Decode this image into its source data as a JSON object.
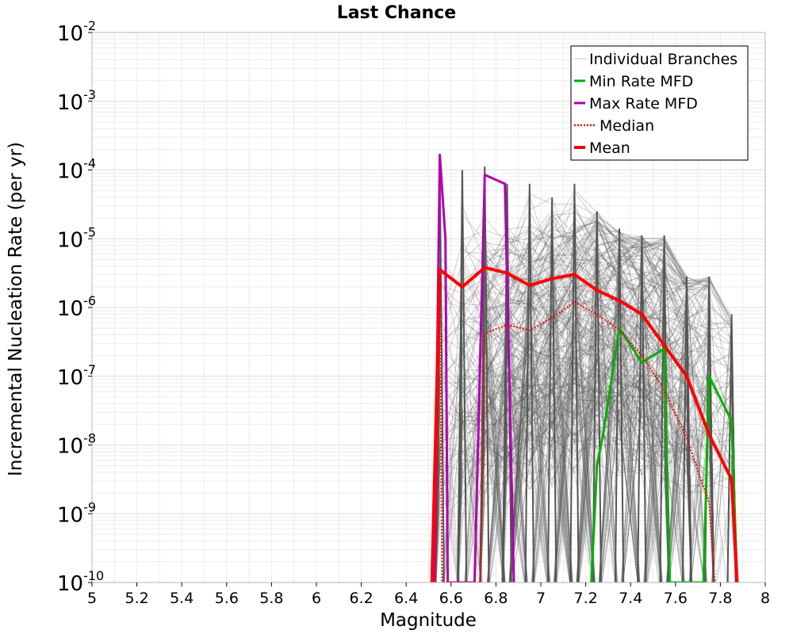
{
  "chart_data": {
    "type": "line",
    "title": "Last Chance",
    "xlabel": "Magnitude",
    "ylabel": "Incremental Nucleation Rate (per yr)",
    "xlim": [
      5,
      8
    ],
    "ylim_log10": [
      -10,
      -2
    ],
    "y_scale": "log",
    "grid": true,
    "legend_position": "top-right",
    "x_ticks": [
      5,
      5.2,
      5.4,
      5.6,
      5.8,
      6,
      6.2,
      6.4,
      6.6,
      6.8,
      7,
      7.2,
      7.4,
      7.6,
      7.8,
      8
    ],
    "x_tick_labels": [
      "5",
      "5.2",
      "5.4",
      "5.6",
      "5.8",
      "6",
      "6.2",
      "6.4",
      "6.6",
      "6.8",
      "7",
      "7.2",
      "7.4",
      "7.6",
      "7.8",
      "8"
    ],
    "y_ticks": [
      {
        "base": "10",
        "exp": "-10",
        "log": -10
      },
      {
        "base": "10",
        "exp": "-9",
        "log": -9
      },
      {
        "base": "10",
        "exp": "-8",
        "log": -8
      },
      {
        "base": "10",
        "exp": "-7",
        "log": -7
      },
      {
        "base": "10",
        "exp": "-6",
        "log": -6
      },
      {
        "base": "10",
        "exp": "-5",
        "log": -5
      },
      {
        "base": "10",
        "exp": "-4",
        "log": -4
      },
      {
        "base": "10",
        "exp": "-3",
        "log": -3
      },
      {
        "base": "10",
        "exp": "-2",
        "log": -2
      }
    ],
    "legend": [
      {
        "label": "Individual Branches",
        "color": "#c8c8c8",
        "style": "thin"
      },
      {
        "label": "Min Rate MFD",
        "color": "#00b000",
        "style": "solid"
      },
      {
        "label": "Max Rate MFD",
        "color": "#b000b0",
        "style": "solid"
      },
      {
        "label": "Median",
        "color": "#ff0000",
        "style": "dotted"
      },
      {
        "label": "Mean",
        "color": "#ff0000",
        "style": "thick"
      }
    ],
    "branch_envelope": {
      "color": "#555555",
      "x": [
        6.55,
        6.65,
        6.75,
        6.85,
        6.95,
        7.05,
        7.15,
        7.25,
        7.35,
        7.45,
        7.55,
        7.65,
        7.75,
        7.85
      ],
      "max_log10": [
        -4.0,
        -4.0,
        -3.95,
        -4.2,
        -4.2,
        -4.4,
        -4.2,
        -4.6,
        -4.85,
        -4.95,
        -4.95,
        -5.55,
        -5.55,
        -6.1
      ]
    },
    "series": [
      {
        "name": "Min Rate MFD",
        "color": "#00b000",
        "points": [
          [
            7.225,
            -10
          ],
          [
            7.25,
            -8.3
          ],
          [
            7.28,
            -7.8
          ],
          [
            7.35,
            -6.3
          ],
          [
            7.45,
            -6.8
          ],
          [
            7.55,
            -6.6
          ],
          [
            7.575,
            -10
          ],
          [
            7.725,
            -10
          ],
          [
            7.75,
            -7.0
          ],
          [
            7.85,
            -7.65
          ],
          [
            7.875,
            -10
          ]
        ]
      },
      {
        "name": "Max Rate MFD",
        "color": "#b000b0",
        "points": [
          [
            6.525,
            -10
          ],
          [
            6.55,
            -3.78
          ],
          [
            6.575,
            -5.0
          ],
          [
            6.585,
            -10
          ],
          [
            6.705,
            -10
          ],
          [
            6.75,
            -4.07
          ],
          [
            6.84,
            -4.2
          ],
          [
            6.88,
            -10
          ]
        ]
      },
      {
        "name": "Median",
        "color": "#ff0000",
        "dotted": true,
        "points": [
          [
            6.53,
            -10
          ],
          [
            6.55,
            -5.9
          ],
          [
            6.56,
            -10
          ],
          [
            6.73,
            -10
          ],
          [
            6.75,
            -6.38
          ],
          [
            6.85,
            -6.25
          ],
          [
            6.95,
            -6.33
          ],
          [
            7.05,
            -6.15
          ],
          [
            7.15,
            -5.92
          ],
          [
            7.25,
            -6.1
          ],
          [
            7.35,
            -6.32
          ],
          [
            7.45,
            -6.7
          ],
          [
            7.55,
            -7.2
          ],
          [
            7.65,
            -7.9
          ],
          [
            7.75,
            -8.85
          ],
          [
            7.775,
            -10
          ]
        ]
      },
      {
        "name": "Mean",
        "color": "#ff0000",
        "points": [
          [
            6.515,
            -10
          ],
          [
            6.55,
            -5.45
          ],
          [
            6.65,
            -5.7
          ],
          [
            6.75,
            -5.42
          ],
          [
            6.85,
            -5.5
          ],
          [
            6.95,
            -5.68
          ],
          [
            7.05,
            -5.58
          ],
          [
            7.15,
            -5.52
          ],
          [
            7.25,
            -5.75
          ],
          [
            7.35,
            -5.9
          ],
          [
            7.45,
            -6.1
          ],
          [
            7.55,
            -6.55
          ],
          [
            7.65,
            -7.0
          ],
          [
            7.75,
            -7.85
          ],
          [
            7.85,
            -8.5
          ],
          [
            7.875,
            -10
          ]
        ]
      }
    ]
  }
}
